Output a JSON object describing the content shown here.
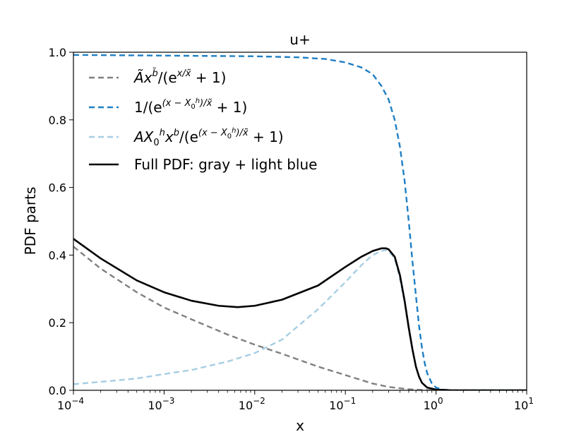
{
  "chart_data": {
    "type": "line",
    "title": "u+",
    "xlabel": "x",
    "ylabel": "PDF parts",
    "xscale": "log",
    "xlim": [
      0.0001,
      10
    ],
    "ylim": [
      0.0,
      1.0
    ],
    "x_ticks": [
      {
        "value": 0.0001,
        "base": "10",
        "exp": "−4"
      },
      {
        "value": 0.001,
        "base": "10",
        "exp": "−3"
      },
      {
        "value": 0.01,
        "base": "10",
        "exp": "−2"
      },
      {
        "value": 0.1,
        "base": "10",
        "exp": "−1"
      },
      {
        "value": 1,
        "base": "10",
        "exp": "0"
      },
      {
        "value": 10,
        "base": "10",
        "exp": "1"
      }
    ],
    "y_ticks": [
      "0.0",
      "0.2",
      "0.4",
      "0.6",
      "0.8",
      "1.0"
    ],
    "legend_position": "top-left",
    "series": [
      {
        "name": "Ãx^b̃/(e^{x/x̃} + 1)",
        "color": "#808080",
        "dash": "dashed",
        "x": [
          0.0001,
          0.0002,
          0.0005,
          0.001,
          0.002,
          0.005,
          0.01,
          0.02,
          0.05,
          0.1,
          0.2,
          0.3,
          0.5,
          0.7,
          1.0,
          2.0,
          10
        ],
        "y": [
          0.425,
          0.36,
          0.29,
          0.245,
          0.21,
          0.165,
          0.135,
          0.108,
          0.07,
          0.045,
          0.02,
          0.01,
          0.003,
          0.001,
          0.0,
          0.0,
          0.0
        ]
      },
      {
        "name": "1/(e^{(x − X_0^h)/x̃} + 1)",
        "color": "#1f7fc4",
        "dash": "dashed",
        "x": [
          0.0001,
          0.001,
          0.01,
          0.03,
          0.06,
          0.1,
          0.15,
          0.2,
          0.25,
          0.3,
          0.35,
          0.4,
          0.45,
          0.5,
          0.55,
          0.6,
          0.65,
          0.7,
          0.75,
          0.8,
          0.9,
          1.0,
          1.2,
          1.5,
          10
        ],
        "y": [
          0.992,
          0.99,
          0.988,
          0.985,
          0.98,
          0.97,
          0.955,
          0.935,
          0.9,
          0.86,
          0.8,
          0.72,
          0.62,
          0.5,
          0.38,
          0.28,
          0.19,
          0.125,
          0.08,
          0.05,
          0.02,
          0.008,
          0.002,
          0.0,
          0.0
        ]
      },
      {
        "name": "AX_0^h x^b/(e^{(x − X_0^h)/x̃} + 1)",
        "color": "#a6cee3",
        "dash": "dashed",
        "x": [
          0.0001,
          0.0002,
          0.0005,
          0.001,
          0.002,
          0.005,
          0.01,
          0.02,
          0.05,
          0.1,
          0.15,
          0.2,
          0.25,
          0.28,
          0.3,
          0.35,
          0.4,
          0.45,
          0.5,
          0.55,
          0.6,
          0.65,
          0.7,
          0.8,
          1.0,
          1.5,
          10
        ],
        "y": [
          0.018,
          0.025,
          0.035,
          0.048,
          0.06,
          0.085,
          0.11,
          0.15,
          0.24,
          0.32,
          0.37,
          0.4,
          0.412,
          0.415,
          0.412,
          0.39,
          0.33,
          0.26,
          0.18,
          0.12,
          0.07,
          0.04,
          0.022,
          0.008,
          0.002,
          0.0,
          0.0
        ]
      },
      {
        "name": "Full PDF: gray + light blue",
        "color": "#000000",
        "dash": "solid",
        "x": [
          0.0001,
          0.0002,
          0.0005,
          0.001,
          0.002,
          0.004,
          0.0065,
          0.01,
          0.02,
          0.05,
          0.1,
          0.15,
          0.2,
          0.25,
          0.28,
          0.3,
          0.35,
          0.4,
          0.45,
          0.5,
          0.55,
          0.6,
          0.65,
          0.7,
          0.8,
          1.0,
          1.5,
          10
        ],
        "y": [
          0.448,
          0.39,
          0.325,
          0.29,
          0.265,
          0.25,
          0.246,
          0.25,
          0.268,
          0.31,
          0.365,
          0.395,
          0.412,
          0.42,
          0.42,
          0.417,
          0.395,
          0.34,
          0.265,
          0.185,
          0.12,
          0.07,
          0.04,
          0.022,
          0.008,
          0.002,
          0.0,
          0.0
        ]
      }
    ]
  }
}
